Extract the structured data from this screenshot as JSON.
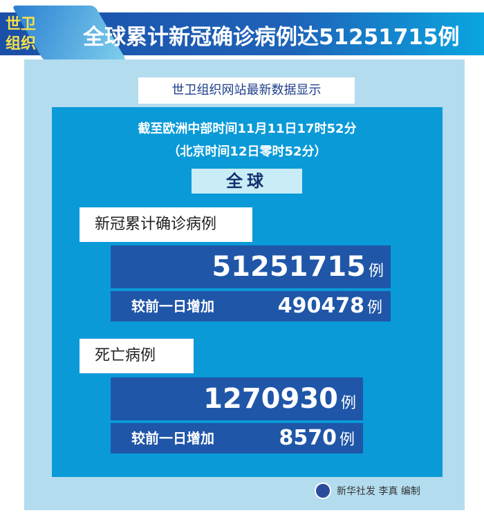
{
  "header": {
    "badge": "世卫组织",
    "title": "全球累计新冠确诊病例达51251715例"
  },
  "source": "世卫组织网站最新数据显示",
  "time": {
    "line1": "截至欧洲中部时间11月11日17时52分",
    "line2": "（北京时间12日零时52分）"
  },
  "scope": "全球",
  "confirmed": {
    "label": "新冠累计确诊病例",
    "total": "51251715",
    "unit": "例",
    "increase_label": "较前一日增加",
    "increase": "490478"
  },
  "deaths": {
    "label": "死亡病例",
    "total": "1270930",
    "unit": "例",
    "increase_label": "较前一日增加",
    "increase": "8570"
  },
  "credit": "新华社发 李真 编制",
  "colors": {
    "banner": "#1e63b8",
    "panel": "#b3dcee",
    "inner": "#0a9ad8",
    "number_box": "#1f56a8"
  }
}
